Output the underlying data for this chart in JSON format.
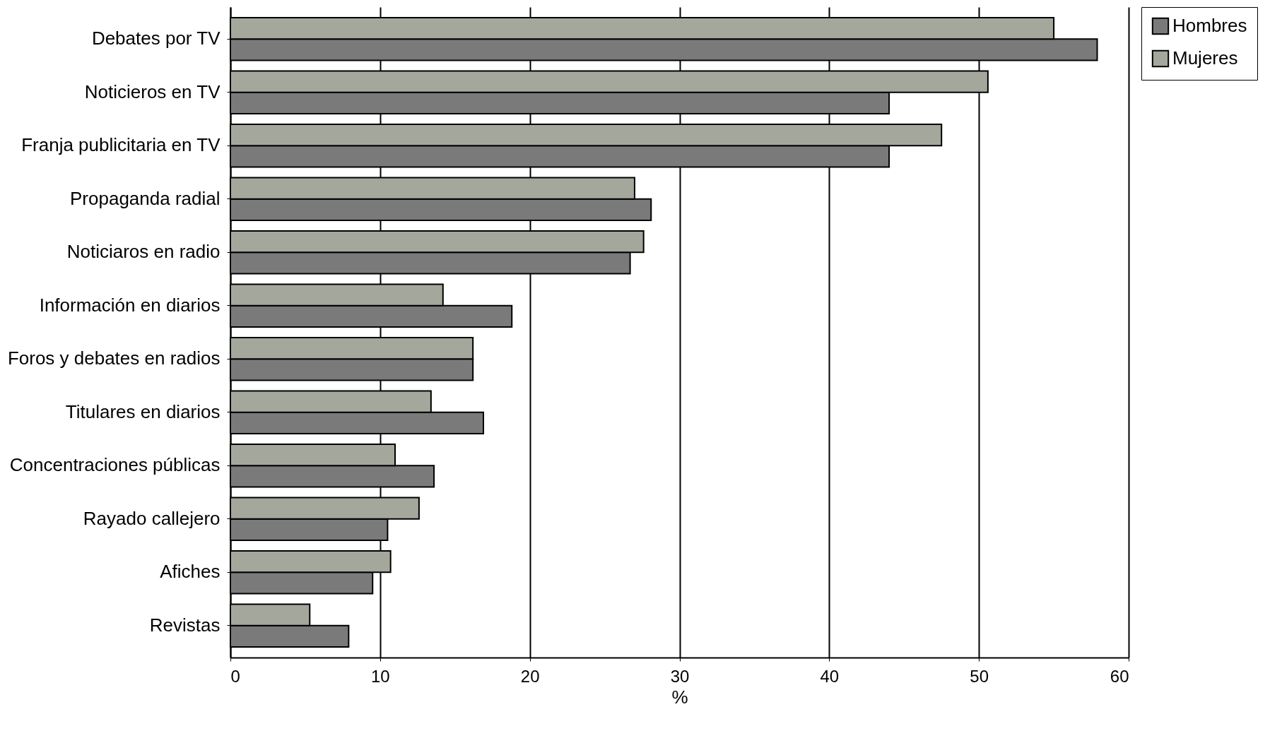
{
  "chart_data": {
    "type": "bar",
    "orientation": "horizontal",
    "xlabel": "%",
    "categories": [
      "Debates por TV",
      "Noticieros en TV",
      "Franja publicitaria en TV",
      "Propaganda radial",
      "Noticiaros en radio",
      "Información en diarios",
      "Foros y debates en radios",
      "Titulares en diarios",
      "Concentraciones públicas",
      "Rayado callejero",
      "Afiches",
      "Revistas"
    ],
    "series": [
      {
        "name": "Hombres",
        "color": "#7a7a7a",
        "values": [
          57.9,
          44.0,
          44.0,
          28.1,
          26.7,
          18.8,
          16.2,
          16.9,
          13.6,
          10.5,
          9.5,
          7.9
        ]
      },
      {
        "name": "Mujeres",
        "color": "#a4a89c",
        "values": [
          55.0,
          50.6,
          47.5,
          27.0,
          27.6,
          14.2,
          16.2,
          13.4,
          11.0,
          12.6,
          10.7,
          5.3
        ]
      }
    ],
    "xlim": [
      0,
      60
    ],
    "xticks": [
      0,
      10,
      20,
      30,
      40,
      50,
      60
    ],
    "grid": "x",
    "legend": "right"
  }
}
